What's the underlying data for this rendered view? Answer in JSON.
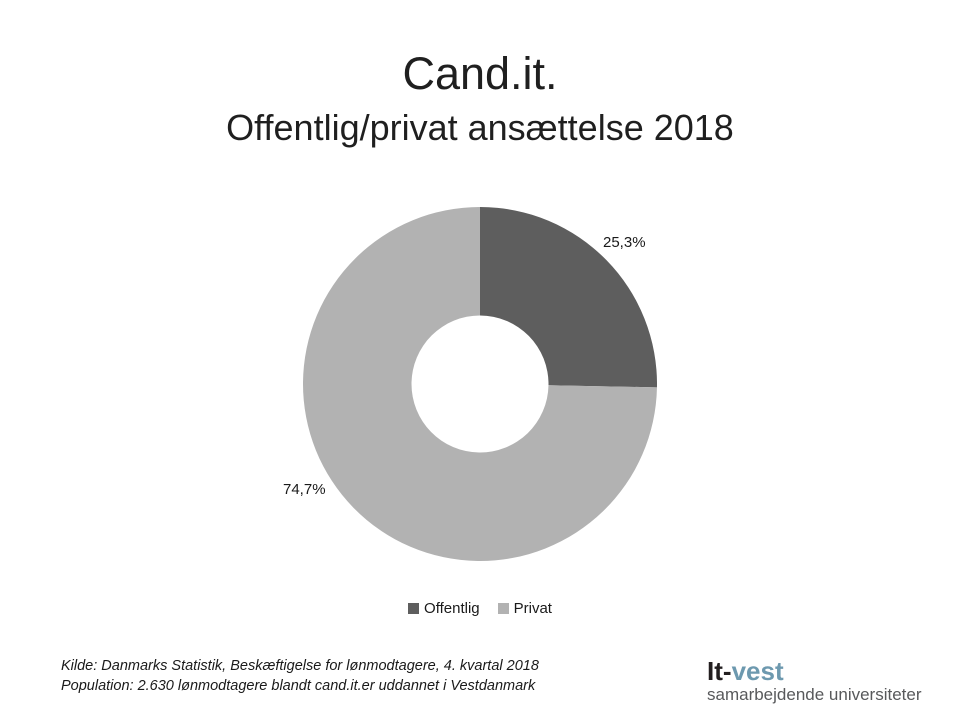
{
  "slide": {
    "title": "Cand.it.",
    "subtitle": "Offentlig/privat ansættelse 2018"
  },
  "chart_data": {
    "type": "pie",
    "subtype": "donut",
    "title": "Cand.it. — Offentlig/privat ansættelse 2018",
    "categories": [
      "Offentlig",
      "Privat"
    ],
    "values": [
      25.3,
      74.7
    ],
    "value_labels": [
      "25,3%",
      "74,7%"
    ],
    "colors": [
      "#5e5e5e",
      "#b2b2b2"
    ],
    "start_angle_deg": 0,
    "inner_radius_ratio": 0.387,
    "legend_position": "bottom",
    "labels_position": "outside"
  },
  "footer": {
    "source_line1": "Kilde: Danmarks Statistik, Beskæftigelse for lønmodtagere, 4. kvartal 2018",
    "source_line2": "Population: 2.630 lønmodtagere blandt cand.it.er uddannet i Vestdanmark"
  },
  "logo": {
    "brand_prefix": "It",
    "brand_hyphen": "-",
    "brand_suffix": "vest",
    "tagline": "samarbejdende universiteter",
    "brand_dark_color": "#231f20",
    "brand_blue_color": "#6d99af",
    "tagline_color": "#58595b"
  }
}
